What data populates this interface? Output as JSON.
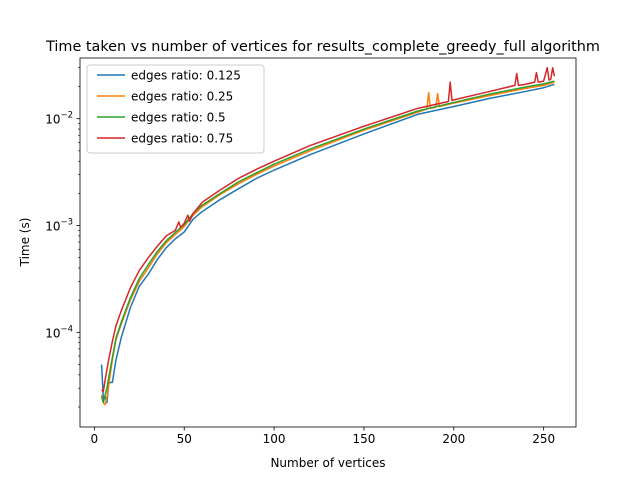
{
  "chart_data": {
    "type": "line",
    "title": "Time taken vs number of vertices for results_complete_greedy_full algorithm",
    "xlabel": "Number of vertices",
    "ylabel": "Time (s)",
    "xlim": [
      -8,
      268
    ],
    "ylim": [
      1.3e-05,
      0.037
    ],
    "yscale": "log",
    "grid": false,
    "legend_position": "top-left",
    "x_ticks": [
      0,
      50,
      100,
      150,
      200,
      250
    ],
    "y_ticks": [
      {
        "value": 0.0001,
        "base": "10",
        "exp": "−4"
      },
      {
        "value": 0.001,
        "base": "10",
        "exp": "−3"
      },
      {
        "value": 0.01,
        "base": "10",
        "exp": "−2"
      }
    ],
    "series": [
      {
        "name": "edges ratio: 0.125",
        "color": "#1f77b4",
        "x": [
          4,
          5,
          6,
          7,
          8,
          9,
          10,
          12,
          15,
          20,
          25,
          30,
          35,
          40,
          45,
          50,
          55,
          60,
          70,
          80,
          90,
          100,
          120,
          150,
          180,
          200,
          220,
          240,
          250,
          256
        ],
        "y": [
          5e-05,
          2.4e-05,
          2.5e-05,
          2.2e-05,
          3.3e-05,
          3.4e-05,
          3.4e-05,
          5.5e-05,
          9e-05,
          0.00017,
          0.00027,
          0.00035,
          0.00048,
          0.00062,
          0.00075,
          0.00087,
          0.00115,
          0.00135,
          0.00175,
          0.0022,
          0.00275,
          0.0033,
          0.0046,
          0.0072,
          0.011,
          0.013,
          0.0155,
          0.018,
          0.0195,
          0.021
        ]
      },
      {
        "name": "edges ratio: 0.25",
        "color": "#ff7f0e",
        "x": [
          4,
          5,
          6,
          7,
          8,
          10,
          12,
          15,
          20,
          25,
          30,
          35,
          40,
          45,
          50,
          55,
          60,
          70,
          80,
          90,
          100,
          120,
          150,
          180,
          185,
          186,
          187,
          190,
          191,
          192,
          200,
          220,
          240,
          250,
          256
        ],
        "y": [
          2.6e-05,
          2.2e-05,
          2.1e-05,
          2.5e-05,
          3.2e-05,
          5.5e-05,
          8.5e-05,
          0.00012,
          0.0002,
          0.0003,
          0.0004,
          0.00054,
          0.00069,
          0.00082,
          0.00098,
          0.00125,
          0.0015,
          0.00195,
          0.00245,
          0.003,
          0.0036,
          0.005,
          0.0078,
          0.0115,
          0.0123,
          0.0175,
          0.0125,
          0.0128,
          0.0172,
          0.013,
          0.014,
          0.0165,
          0.0192,
          0.0205,
          0.022
        ]
      },
      {
        "name": "edges ratio: 0.5",
        "color": "#2ca02c",
        "x": [
          4,
          5,
          6,
          7,
          8,
          10,
          12,
          15,
          20,
          25,
          30,
          35,
          40,
          45,
          50,
          55,
          60,
          70,
          80,
          90,
          100,
          120,
          150,
          180,
          200,
          220,
          240,
          250,
          256
        ],
        "y": [
          2.5e-05,
          2.2e-05,
          2.6e-05,
          3e-05,
          3.8e-05,
          5.8e-05,
          8.8e-05,
          0.000125,
          0.00021,
          0.00032,
          0.00043,
          0.00057,
          0.00072,
          0.00086,
          0.00102,
          0.0013,
          0.00155,
          0.002,
          0.00255,
          0.0031,
          0.00375,
          0.0052,
          0.008,
          0.0118,
          0.0142,
          0.017,
          0.0198,
          0.0212,
          0.0225
        ]
      },
      {
        "name": "edges ratio: 0.75",
        "color": "#d62728",
        "x": [
          4,
          5,
          6,
          7,
          8,
          10,
          12,
          15,
          20,
          25,
          30,
          35,
          40,
          45,
          47,
          48,
          50,
          52,
          53,
          55,
          60,
          70,
          80,
          90,
          100,
          120,
          150,
          180,
          197,
          198,
          199,
          200,
          220,
          234,
          235,
          236,
          240,
          245,
          246,
          247,
          250,
          252,
          253,
          254,
          255,
          256
        ],
        "y": [
          2.9e-05,
          2.8e-05,
          3.6e-05,
          4.5e-05,
          5.6e-05,
          8.2e-05,
          0.000115,
          0.00016,
          0.00026,
          0.00038,
          0.0005,
          0.00064,
          0.0008,
          0.0009,
          0.00108,
          0.00096,
          0.00105,
          0.00125,
          0.0011,
          0.0013,
          0.00165,
          0.00215,
          0.00275,
          0.00335,
          0.004,
          0.0056,
          0.0085,
          0.0125,
          0.0145,
          0.022,
          0.0148,
          0.015,
          0.018,
          0.0205,
          0.0265,
          0.0205,
          0.021,
          0.022,
          0.027,
          0.022,
          0.0225,
          0.03,
          0.023,
          0.0235,
          0.03,
          0.025
        ]
      }
    ]
  }
}
